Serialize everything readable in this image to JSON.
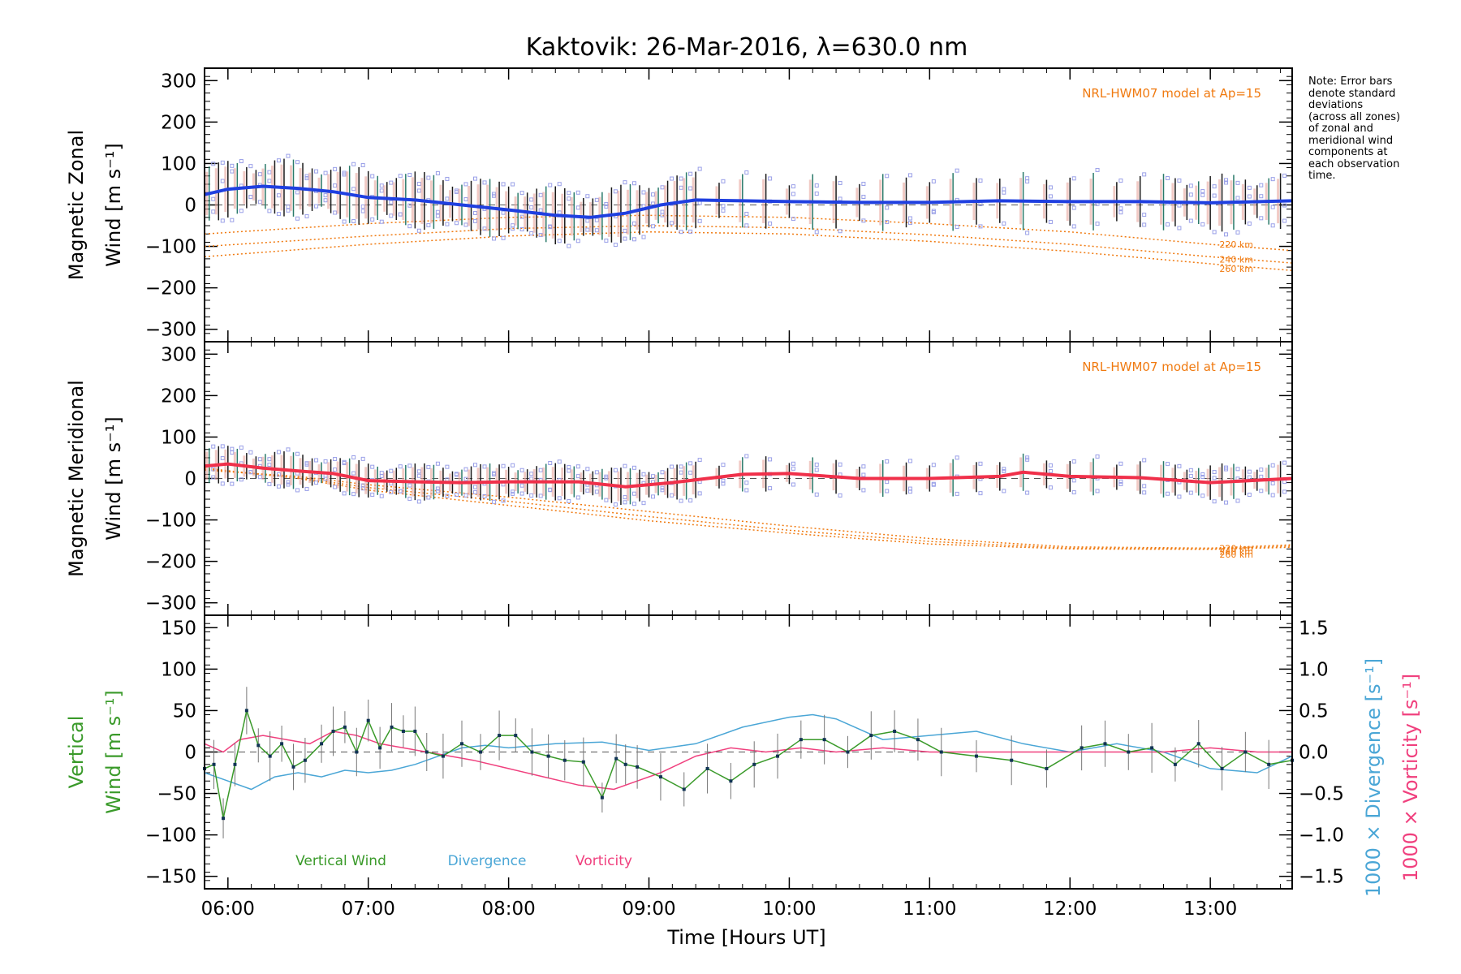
{
  "title": "Kaktovik: 26-Mar-2016, λ=630.0 nm",
  "xlabel": "Time [Hours UT]",
  "note": [
    "Note: Error bars",
    "denote standard",
    "deviations",
    "(across all zones)",
    "of zonal and",
    "meridional wind",
    "components at",
    "each observation",
    "time."
  ],
  "colors": {
    "zonal": "#1f3fe0",
    "meridional": "#f0304a",
    "model": "#f07a10",
    "vertical": "#3a9a2a",
    "divergence": "#4aa6d6",
    "vorticity": "#f0407e",
    "scatter": "#9aa0e8"
  },
  "chart_data": [
    {
      "type": "line",
      "panel": "zonal",
      "ylabel": [
        "Magnetic Zonal",
        "Wind [m s⁻¹]"
      ],
      "ylim": [
        -330,
        330
      ],
      "yticks": [
        300,
        200,
        100,
        0,
        -100,
        -200,
        -300
      ],
      "xlim": [
        "05:50",
        "13:35"
      ],
      "xticks": [
        "06:00",
        "07:00",
        "08:00",
        "09:00",
        "10:00",
        "11:00",
        "12:00",
        "13:00"
      ],
      "model_label": "NRL-HWM07 model at Ap=15",
      "model_series": [
        {
          "name": "220 km",
          "x": [
            "05:50",
            "07:00",
            "08:00",
            "09:00",
            "10:00",
            "11:00",
            "12:00",
            "13:00",
            "13:35"
          ],
          "values": [
            -70,
            -45,
            -30,
            -25,
            -30,
            -45,
            -65,
            -95,
            -110
          ]
        },
        {
          "name": "240 km",
          "x": [
            "05:50",
            "07:00",
            "08:00",
            "09:00",
            "10:00",
            "11:00",
            "12:00",
            "13:00",
            "13:35"
          ],
          "values": [
            -100,
            -75,
            -57,
            -50,
            -55,
            -72,
            -95,
            -125,
            -140
          ]
        },
        {
          "name": "260 km",
          "x": [
            "05:50",
            "07:00",
            "08:00",
            "09:00",
            "10:00",
            "11:00",
            "12:00",
            "13:00",
            "13:35"
          ],
          "values": [
            -125,
            -95,
            -75,
            -65,
            -70,
            -88,
            -112,
            -142,
            -158
          ]
        }
      ],
      "series": [
        {
          "name": "zonal wind",
          "x": [
            "05:50",
            "06:00",
            "06:15",
            "06:30",
            "06:45",
            "07:00",
            "07:20",
            "07:40",
            "08:00",
            "08:20",
            "08:35",
            "08:50",
            "09:05",
            "09:20",
            "09:40",
            "10:00",
            "10:30",
            "11:00",
            "11:30",
            "12:00",
            "12:30",
            "13:00",
            "13:35"
          ],
          "values": [
            25,
            38,
            45,
            40,
            32,
            18,
            12,
            0,
            -12,
            -25,
            -30,
            -20,
            0,
            12,
            10,
            8,
            6,
            6,
            10,
            8,
            8,
            5,
            10
          ]
        }
      ],
      "error_half_width": 70
    },
    {
      "type": "line",
      "panel": "meridional",
      "ylabel": [
        "Magnetic Meridional",
        "Wind [m s⁻¹]"
      ],
      "ylim": [
        -330,
        330
      ],
      "yticks": [
        300,
        200,
        100,
        0,
        -100,
        -200,
        -300
      ],
      "xlim": [
        "05:50",
        "13:35"
      ],
      "xticks": [
        "06:00",
        "07:00",
        "08:00",
        "09:00",
        "10:00",
        "11:00",
        "12:00",
        "13:00"
      ],
      "model_label": "NRL-HWM07 model at Ap=15",
      "model_series": [
        {
          "name": "220 km",
          "x": [
            "05:50",
            "06:30",
            "07:00",
            "08:00",
            "09:00",
            "10:00",
            "11:00",
            "12:00",
            "13:00",
            "13:35"
          ],
          "values": [
            20,
            5,
            -15,
            -45,
            -80,
            -115,
            -145,
            -165,
            -168,
            -160
          ]
        },
        {
          "name": "240 km",
          "x": [
            "05:50",
            "06:30",
            "07:00",
            "08:00",
            "09:00",
            "10:00",
            "11:00",
            "12:00",
            "13:00",
            "13:35"
          ],
          "values": [
            22,
            2,
            -22,
            -55,
            -92,
            -125,
            -152,
            -168,
            -170,
            -163
          ]
        },
        {
          "name": "260 km",
          "x": [
            "05:50",
            "06:30",
            "07:00",
            "08:00",
            "09:00",
            "10:00",
            "11:00",
            "12:00",
            "13:00",
            "13:35"
          ],
          "values": [
            25,
            0,
            -28,
            -65,
            -102,
            -132,
            -158,
            -170,
            -171,
            -166
          ]
        }
      ],
      "series": [
        {
          "name": "meridional wind",
          "x": [
            "05:50",
            "06:00",
            "06:15",
            "06:30",
            "06:45",
            "07:00",
            "07:20",
            "07:40",
            "08:00",
            "08:30",
            "08:50",
            "09:10",
            "09:40",
            "10:00",
            "10:30",
            "11:00",
            "11:30",
            "11:40",
            "12:00",
            "12:30",
            "13:00",
            "13:35"
          ],
          "values": [
            30,
            35,
            25,
            18,
            12,
            -5,
            -8,
            -10,
            -8,
            -8,
            -20,
            -10,
            10,
            12,
            0,
            0,
            5,
            15,
            5,
            2,
            -10,
            0
          ]
        }
      ],
      "error_half_width": 45
    },
    {
      "type": "line",
      "panel": "vertical",
      "ylabel": [
        "Vertical",
        "Wind [m s⁻¹]"
      ],
      "ylim": [
        -165,
        165
      ],
      "yticks": [
        150,
        100,
        50,
        0,
        -50,
        -100,
        -150
      ],
      "y2label": [
        "1000 × Divergence [s⁻¹]",
        "1000 × Vorticity [s⁻¹]"
      ],
      "y2lim": [
        -1.65,
        1.65
      ],
      "y2ticks": [
        1.5,
        1.0,
        0.5,
        0.0,
        -0.5,
        -1.0,
        -1.5
      ],
      "y2tick_labels": [
        "1.5",
        "1.0",
        "0.5",
        "0.0",
        "−0.5",
        "−1.0",
        "−1.5"
      ],
      "xlim": [
        "05:50",
        "13:35"
      ],
      "xticks": [
        "06:00",
        "07:00",
        "08:00",
        "09:00",
        "10:00",
        "11:00",
        "12:00",
        "13:00"
      ],
      "legend": [
        "Vertical Wind",
        "Divergence",
        "Vorticity"
      ],
      "series": [
        {
          "name": "Vertical Wind",
          "x": [
            "05:50",
            "05:54",
            "05:58",
            "06:03",
            "06:08",
            "06:13",
            "06:18",
            "06:23",
            "06:28",
            "06:33",
            "06:40",
            "06:45",
            "06:50",
            "06:55",
            "07:00",
            "07:05",
            "07:10",
            "07:15",
            "07:20",
            "07:25",
            "07:32",
            "07:40",
            "07:48",
            "07:56",
            "08:03",
            "08:10",
            "08:17",
            "08:24",
            "08:32",
            "08:40",
            "08:46",
            "08:50",
            "08:55",
            "09:05",
            "09:15",
            "09:25",
            "09:35",
            "09:45",
            "09:55",
            "10:05",
            "10:15",
            "10:25",
            "10:35",
            "10:45",
            "10:55",
            "11:05",
            "11:20",
            "11:35",
            "11:50",
            "12:05",
            "12:15",
            "12:25",
            "12:35",
            "12:45",
            "12:55",
            "13:05",
            "13:15",
            "13:25",
            "13:35"
          ],
          "values": [
            -20,
            -15,
            -80,
            -15,
            50,
            8,
            -5,
            10,
            -18,
            -10,
            10,
            25,
            30,
            0,
            38,
            5,
            30,
            25,
            25,
            0,
            -5,
            10,
            0,
            20,
            20,
            0,
            -5,
            -10,
            -12,
            -55,
            -8,
            -15,
            -18,
            -30,
            -45,
            -20,
            -35,
            -15,
            -5,
            15,
            15,
            0,
            20,
            25,
            15,
            0,
            -5,
            -10,
            -20,
            5,
            10,
            0,
            5,
            -15,
            10,
            -20,
            0,
            -15,
            -10
          ]
        },
        {
          "name": "Divergence",
          "x": [
            "05:50",
            "06:00",
            "06:10",
            "06:20",
            "06:30",
            "06:40",
            "06:50",
            "07:00",
            "07:10",
            "07:20",
            "07:30",
            "07:40",
            "07:50",
            "08:00",
            "08:20",
            "08:40",
            "09:00",
            "09:20",
            "09:40",
            "10:00",
            "10:10",
            "10:20",
            "10:40",
            "11:00",
            "11:20",
            "11:40",
            "12:00",
            "12:20",
            "12:40",
            "13:00",
            "13:20",
            "13:35"
          ],
          "values": [
            -0.25,
            -0.35,
            -0.45,
            -0.3,
            -0.25,
            -0.3,
            -0.22,
            -0.25,
            -0.22,
            -0.15,
            -0.05,
            0.05,
            0.08,
            0.05,
            0.1,
            0.12,
            0.02,
            0.1,
            0.3,
            0.42,
            0.45,
            0.4,
            0.15,
            0.2,
            0.25,
            0.1,
            0.0,
            0.1,
            0.0,
            -0.2,
            -0.25,
            -0.05
          ]
        },
        {
          "name": "Vorticity",
          "x": [
            "05:50",
            "05:58",
            "06:05",
            "06:15",
            "06:25",
            "06:35",
            "06:45",
            "06:55",
            "07:05",
            "07:15",
            "07:25",
            "07:35",
            "07:45",
            "08:00",
            "08:15",
            "08:30",
            "08:45",
            "08:55",
            "09:05",
            "09:20",
            "09:35",
            "09:50",
            "10:05",
            "10:20",
            "10:40",
            "11:00",
            "11:20",
            "11:40",
            "12:00",
            "12:20",
            "12:40",
            "13:00",
            "13:20",
            "13:35"
          ],
          "values": [
            0.1,
            0.0,
            0.15,
            0.2,
            0.15,
            0.1,
            0.25,
            0.2,
            0.1,
            0.05,
            0.0,
            -0.05,
            -0.1,
            -0.2,
            -0.3,
            -0.4,
            -0.45,
            -0.35,
            -0.25,
            -0.05,
            0.05,
            0.0,
            0.05,
            0.0,
            0.05,
            0.0,
            0.0,
            0.0,
            0.0,
            0.0,
            0.0,
            0.05,
            0.0,
            0.0
          ]
        }
      ],
      "error_half_width": 30
    }
  ]
}
